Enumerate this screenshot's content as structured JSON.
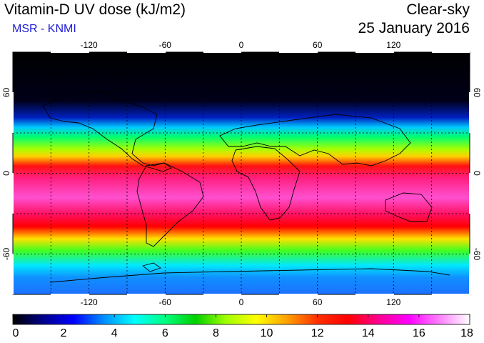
{
  "header": {
    "title": "Vitamin-D UV dose (kJ/m2)",
    "subtitle": "MSR - KNMI",
    "product": "Clear-sky",
    "date": "25 January 2016"
  },
  "map": {
    "lon_labels": [
      "-120",
      "-60",
      "0",
      "60",
      "120"
    ],
    "lat_labels": [
      "60",
      "0",
      "-60"
    ],
    "lon_values": [
      -120,
      -60,
      0,
      60,
      120
    ],
    "lat_values": [
      60,
      0,
      -60
    ],
    "lon_range": [
      -180,
      180
    ],
    "lat_range": [
      -90,
      90
    ],
    "gridlines": "dotted",
    "coastlines": true
  },
  "colorbar": {
    "min": 0,
    "max": 18,
    "labels": [
      "0",
      "2",
      "4",
      "6",
      "8",
      "10",
      "12",
      "14",
      "16",
      "18"
    ],
    "colors": [
      "#000000",
      "#00008b",
      "#0000ff",
      "#0090ff",
      "#00ffff",
      "#00ff80",
      "#00d000",
      "#a0ff00",
      "#ffff00",
      "#ffa000",
      "#ff3000",
      "#ff0000",
      "#ff0090",
      "#ff00ff",
      "#ff80ff",
      "#ffffff"
    ]
  }
}
